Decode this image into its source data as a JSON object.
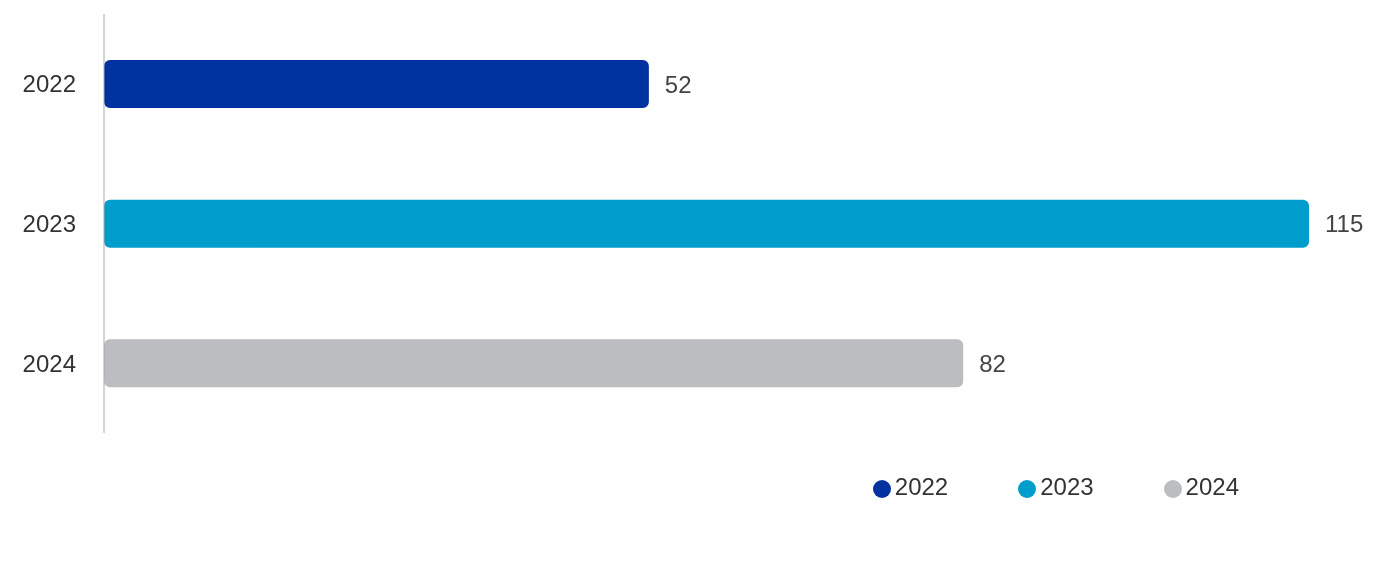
{
  "chart_data": {
    "type": "bar",
    "orientation": "horizontal",
    "stacked": true,
    "categories": [
      "2022",
      "2023",
      "2024"
    ],
    "series": [
      {
        "name": "2022",
        "color": "#0033a0",
        "values": [
          52,
          null,
          null
        ]
      },
      {
        "name": "2023",
        "color": "#009ccc",
        "values": [
          null,
          115,
          null
        ]
      },
      {
        "name": "2024",
        "color": "#bcbdc0",
        "values": [
          null,
          null,
          82
        ]
      }
    ],
    "data_labels": true,
    "legend": "bottom right"
  }
}
